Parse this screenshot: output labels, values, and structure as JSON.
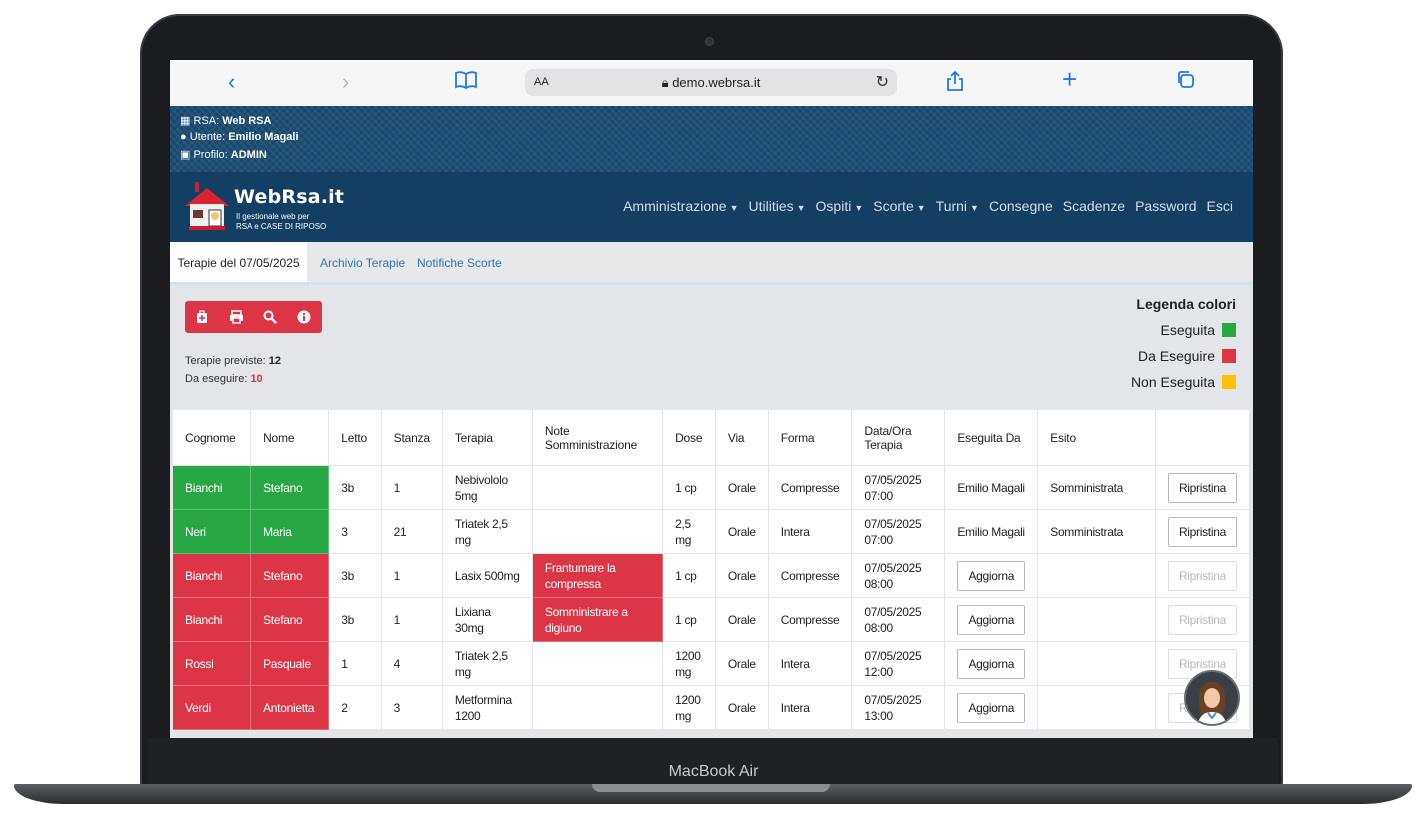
{
  "device": {
    "label": "MacBook Air"
  },
  "browser": {
    "aa_label": "AA",
    "url": "demo.webrsa.it"
  },
  "info": {
    "rsa_label": "RSA: ",
    "rsa_value": "Web RSA",
    "user_label": "Utente: ",
    "user_value": "Emilio Magali",
    "profile_label": "Profilo: ",
    "profile_value": "ADMIN"
  },
  "logo": {
    "title": "WebRsa.it",
    "subtitle_1": "Il gestionale web per",
    "subtitle_2": "RSA e CASE DI RIPOSO"
  },
  "nav": {
    "items": [
      "Amministrazione",
      "Utilities",
      "Ospiti",
      "Scorte",
      "Turni",
      "Consegne",
      "Scadenze",
      "Password",
      "Esci"
    ],
    "dropdown": [
      true,
      true,
      true,
      true,
      true,
      false,
      false,
      false,
      false
    ]
  },
  "tabs": [
    "Terapie del 07/05/2025",
    "Archivio Terapie",
    "Notifiche Scorte"
  ],
  "toolbar": {
    "icons": [
      "medical-bag-icon",
      "print-icon",
      "search-icon",
      "info-icon"
    ]
  },
  "stats": {
    "planned_label": "Terapie previste: ",
    "planned_value": "12",
    "todo_label": "Da eseguire: ",
    "todo_value": "10"
  },
  "legend": {
    "title": "Legenda colori",
    "items": [
      {
        "label": "Eseguita",
        "color": "#28a745"
      },
      {
        "label": "Da Eseguire",
        "color": "#dc3545"
      },
      {
        "label": "Non Eseguita",
        "color": "#ffc107"
      }
    ]
  },
  "table": {
    "headers": [
      "Cognome",
      "Nome",
      "Letto",
      "Stanza",
      "Terapia",
      "Note Somministrazione",
      "Dose",
      "Via",
      "Forma",
      "Data/Ora Terapia",
      "Eseguita Da",
      "Esito",
      ""
    ],
    "rows": [
      {
        "status": "done",
        "cognome": "Bianchi",
        "nome": "Stefano",
        "letto": "3b",
        "stanza": "1",
        "terapia": "Nebivololo 5mg",
        "note": "",
        "dose": "1 cp",
        "via": "Orale",
        "forma": "Compresse",
        "data": "07/05/2025 07:00",
        "eseguita_da": "Emilio Magali",
        "esito": "Somministrata",
        "action": "Ripristina"
      },
      {
        "status": "done",
        "cognome": "Neri",
        "nome": "Maria",
        "letto": "3",
        "stanza": "21",
        "terapia": "Triatek 2,5 mg",
        "note": "",
        "dose": "2,5 mg",
        "via": "Orale",
        "forma": "Intera",
        "data": "07/05/2025 07:00",
        "eseguita_da": "Emilio Magali",
        "esito": "Somministrata",
        "action": "Ripristina"
      },
      {
        "status": "todo",
        "cognome": "Bianchi",
        "nome": "Stefano",
        "letto": "3b",
        "stanza": "1",
        "terapia": "Lasix 500mg",
        "note": "Frantumare la compressa",
        "dose": "1 cp",
        "via": "Orale",
        "forma": "Compresse",
        "data": "07/05/2025 08:00",
        "eseguita_button": "Aggiorna",
        "esito": "",
        "action": "Ripristina"
      },
      {
        "status": "todo",
        "cognome": "Bianchi",
        "nome": "Stefano",
        "letto": "3b",
        "stanza": "1",
        "terapia": "Lixiana 30mg",
        "note": "Somministrare a digiuno",
        "dose": "1 cp",
        "via": "Orale",
        "forma": "Compresse",
        "data": "07/05/2025 08:00",
        "eseguita_button": "Aggiorna",
        "esito": "",
        "action": "Ripristina"
      },
      {
        "status": "todo",
        "cognome": "Rossi",
        "nome": "Pasquale",
        "letto": "1",
        "stanza": "4",
        "terapia": "Triatek 2,5 mg",
        "note": "",
        "dose": "1200 mg",
        "via": "Orale",
        "forma": "Intera",
        "data": "07/05/2025 12:00",
        "eseguita_button": "Aggiorna",
        "esito": "",
        "action": "Ripristina"
      },
      {
        "status": "todo",
        "cognome": "Verdi",
        "nome": "Antonietta",
        "letto": "2",
        "stanza": "3",
        "terapia": "Metformina 1200",
        "note": "",
        "dose": "1200 mg",
        "via": "Orale",
        "forma": "Intera",
        "data": "07/05/2025 13:00",
        "eseguita_button": "Aggiorna",
        "esito": "",
        "action": "Ripristina"
      }
    ]
  }
}
